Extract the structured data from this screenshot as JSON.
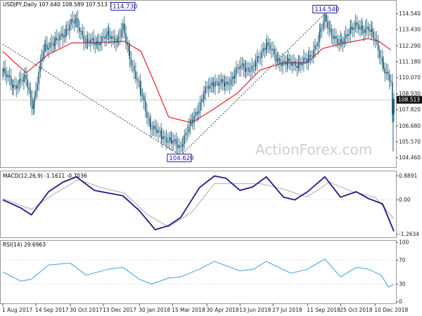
{
  "colors": {
    "background": "#ffffff",
    "candle": "#1f5c7a",
    "ma": "#e8212a",
    "trendline": "#404040",
    "macd_line": "#1a1a8c",
    "signal_line": "#b8b8b8",
    "rsi": "#3ea0e0",
    "callout_border": "#1a1aa0",
    "last_price_bg": "#111111",
    "grid_dots": "#c8c8c8"
  },
  "chart_data": [
    {
      "type": "candlestick",
      "title": "USDJPY,Daily  107.640 108.589 107.513 108.513",
      "ohlc_header": {
        "open": 107.64,
        "high": 108.589,
        "low": 107.513,
        "close": 108.513
      },
      "ylim": [
        103.9,
        115.3
      ],
      "y_ticks": [
        "114.540",
        "113.430",
        "112.290",
        "111.180",
        "110.070",
        "108.930",
        "107.820",
        "106.680",
        "105.570",
        "104.460"
      ],
      "last_price": "108.513",
      "watermark": "ActionForex.com",
      "annotations": [
        {
          "label": "114.730",
          "date": "2018-01-08",
          "value": 114.73
        },
        {
          "label": "104.620",
          "date": "2018-03-26",
          "value": 104.62
        },
        {
          "label": "114.540",
          "date": "2018-10-04",
          "value": 114.54
        }
      ],
      "trendlines": [
        {
          "from": [
            "2017-08-01",
            112.4
          ],
          "to": [
            "2018-03-26",
            104.62
          ]
        },
        {
          "from": [
            "2018-03-26",
            104.62
          ],
          "to": [
            "2018-10-04",
            114.54
          ]
        }
      ],
      "close_series": {
        "dates": [
          "2017-08-01",
          "2017-08-15",
          "2017-09-01",
          "2017-09-10",
          "2017-09-25",
          "2017-10-10",
          "2017-10-30",
          "2017-11-07",
          "2017-11-20",
          "2017-12-05",
          "2017-12-20",
          "2018-01-01",
          "2018-01-08",
          "2018-01-20",
          "2018-02-02",
          "2018-02-15",
          "2018-03-02",
          "2018-03-15",
          "2018-03-26",
          "2018-04-10",
          "2018-04-30",
          "2018-05-10",
          "2018-05-25",
          "2018-06-13",
          "2018-07-01",
          "2018-07-18",
          "2018-08-01",
          "2018-08-20",
          "2018-09-11",
          "2018-09-25",
          "2018-10-04",
          "2018-10-20",
          "2018-10-25",
          "2018-11-05",
          "2018-11-15",
          "2018-12-01",
          "2018-12-10",
          "2018-12-18",
          "2018-12-24",
          "2018-12-31",
          "2019-01-03",
          "2019-01-04"
        ],
        "close": [
          110.5,
          109.5,
          110.0,
          108.0,
          112.3,
          112.5,
          113.8,
          114.0,
          112.5,
          112.6,
          113.0,
          112.7,
          113.5,
          111.0,
          108.8,
          106.5,
          106.0,
          105.5,
          105.3,
          107.0,
          109.3,
          109.8,
          109.5,
          110.8,
          110.7,
          112.5,
          111.3,
          111.0,
          111.2,
          112.7,
          114.2,
          112.5,
          112.4,
          113.4,
          113.6,
          113.5,
          112.7,
          111.5,
          110.3,
          109.7,
          106.0,
          108.5
        ]
      },
      "ma_series": {
        "dates": [
          "2017-08-01",
          "2017-09-01",
          "2017-10-01",
          "2017-11-01",
          "2017-12-01",
          "2018-01-10",
          "2018-02-01",
          "2018-02-20",
          "2018-03-10",
          "2018-04-10",
          "2018-05-10",
          "2018-06-10",
          "2018-07-10",
          "2018-08-10",
          "2018-09-10",
          "2018-10-01",
          "2018-11-01",
          "2018-12-01",
          "2018-12-15",
          "2018-12-31"
        ],
        "values": [
          111.9,
          110.4,
          111.7,
          112.5,
          112.5,
          112.6,
          111.9,
          109.6,
          107.3,
          106.9,
          107.9,
          109.0,
          110.6,
          111.1,
          111.1,
          112.1,
          112.5,
          112.8,
          112.6,
          112.0
        ]
      }
    },
    {
      "type": "line",
      "title": "MACD(12,26,9) -1.1611 -0.7036",
      "y_ticks": [
        "0.8891",
        "0.00",
        "-1.2634"
      ],
      "ylim": [
        -1.33,
        1.0
      ],
      "series": [
        {
          "role": "macd",
          "dates": [
            "2017-08-01",
            "2017-08-25",
            "2017-09-08",
            "2017-10-01",
            "2017-10-20",
            "2017-11-07",
            "2017-12-01",
            "2017-12-20",
            "2018-01-08",
            "2018-01-30",
            "2018-02-20",
            "2018-03-10",
            "2018-03-26",
            "2018-04-20",
            "2018-05-10",
            "2018-05-25",
            "2018-06-13",
            "2018-06-30",
            "2018-07-18",
            "2018-08-10",
            "2018-08-25",
            "2018-09-11",
            "2018-10-04",
            "2018-10-25",
            "2018-11-15",
            "2018-12-01",
            "2018-12-20",
            "2019-01-04"
          ],
          "values": [
            0.0,
            -0.3,
            -0.55,
            0.3,
            0.65,
            0.85,
            0.35,
            0.25,
            0.15,
            -0.4,
            -1.1,
            -0.95,
            -0.65,
            0.45,
            0.88,
            0.8,
            0.35,
            0.48,
            0.85,
            0.1,
            0.0,
            0.3,
            0.85,
            0.1,
            0.3,
            0.05,
            -0.15,
            -1.16
          ]
        },
        {
          "role": "signal",
          "dates": [
            "2017-08-01",
            "2017-09-08",
            "2017-10-10",
            "2017-11-10",
            "2017-12-10",
            "2018-01-10",
            "2018-02-10",
            "2018-03-10",
            "2018-04-10",
            "2018-05-10",
            "2018-06-10",
            "2018-07-10",
            "2018-08-10",
            "2018-09-10",
            "2018-10-10",
            "2018-11-10",
            "2018-12-10",
            "2019-01-04"
          ],
          "values": [
            0.05,
            -0.35,
            0.25,
            0.75,
            0.45,
            0.25,
            -0.55,
            -1.0,
            -0.45,
            0.6,
            0.6,
            0.6,
            0.4,
            0.1,
            0.65,
            0.3,
            0.1,
            -0.7
          ]
        }
      ]
    },
    {
      "type": "line",
      "title": "RSI(14) 29.6963",
      "y_ticks": [
        "100",
        "70",
        "30",
        "0"
      ],
      "ylim": [
        0,
        100
      ],
      "reference_levels": [
        70,
        30
      ],
      "series": [
        {
          "role": "rsi",
          "dates": [
            "2017-08-01",
            "2017-08-25",
            "2017-09-08",
            "2017-10-01",
            "2017-10-30",
            "2017-11-20",
            "2017-12-20",
            "2018-01-08",
            "2018-01-30",
            "2018-02-15",
            "2018-03-10",
            "2018-03-26",
            "2018-04-20",
            "2018-05-10",
            "2018-06-13",
            "2018-07-01",
            "2018-07-18",
            "2018-08-20",
            "2018-09-11",
            "2018-10-04",
            "2018-10-25",
            "2018-11-15",
            "2018-12-01",
            "2018-12-18",
            "2018-12-28",
            "2019-01-04"
          ],
          "values": [
            50,
            35,
            38,
            62,
            65,
            45,
            55,
            58,
            38,
            30,
            40,
            42,
            55,
            68,
            52,
            55,
            68,
            48,
            55,
            72,
            42,
            58,
            55,
            45,
            25,
            29.7
          ]
        }
      ]
    }
  ],
  "x_axis": {
    "labels": [
      {
        "text": "1 Aug 2017",
        "date": "2017-08-01"
      },
      {
        "text": "14 Sep 2017",
        "date": "2017-09-14"
      },
      {
        "text": "30 Oct 2017",
        "date": "2017-10-30"
      },
      {
        "text": "13 Dec 2017",
        "date": "2017-12-13"
      },
      {
        "text": "30 Jan 2018",
        "date": "2018-01-30"
      },
      {
        "text": "15 Mar 2018",
        "date": "2018-03-15"
      },
      {
        "text": "30 Apr 2018",
        "date": "2018-04-30"
      },
      {
        "text": "13 Jun 2018",
        "date": "2018-06-13"
      },
      {
        "text": "27 Jul 2018",
        "date": "2018-07-27"
      },
      {
        "text": "11 Sep 2018",
        "date": "2018-09-11"
      },
      {
        "text": "25 Oct 2018",
        "date": "2018-10-25"
      },
      {
        "text": "10 Dec 2018",
        "date": "2018-12-10"
      }
    ]
  }
}
